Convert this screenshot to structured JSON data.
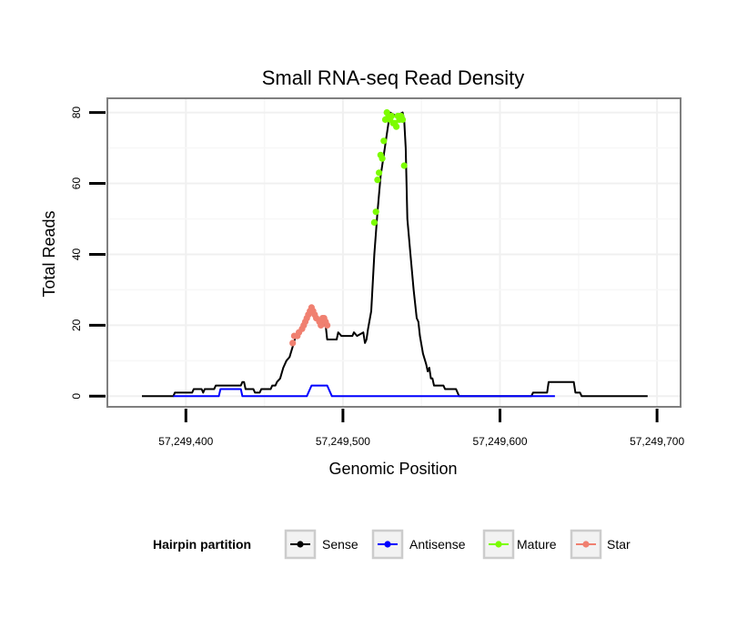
{
  "chart_data": {
    "type": "line",
    "title": "Small RNA-seq Read Density",
    "xlabel": "Genomic Position",
    "ylabel": "Total Reads",
    "xlim": [
      57249350,
      57249715
    ],
    "ylim": [
      -3,
      84
    ],
    "x_ticks": [
      57249400,
      57249500,
      57249600,
      57249700
    ],
    "x_tick_labels": [
      "57,249,400",
      "57,249,500",
      "57,249,600",
      "57,249,700"
    ],
    "y_ticks": [
      0,
      20,
      40,
      60,
      80
    ],
    "y_tick_labels": [
      "0",
      "20",
      "40",
      "60",
      "80"
    ],
    "grid": true,
    "legend": {
      "title": "Hairpin partition",
      "position": "bottom",
      "entries": [
        {
          "label": "Sense",
          "color": "#000000"
        },
        {
          "label": "Antisense",
          "color": "#0000ff"
        },
        {
          "label": "Mature",
          "color": "#7cfc00"
        },
        {
          "label": "Star",
          "color": "#f08070"
        }
      ]
    },
    "series": [
      {
        "name": "Sense",
        "color": "#000000",
        "style": "line",
        "points": [
          [
            57249372,
            0
          ],
          [
            57249392,
            0
          ],
          [
            57249393,
            1
          ],
          [
            57249404,
            1
          ],
          [
            57249405,
            2
          ],
          [
            57249410,
            2
          ],
          [
            57249411,
            1
          ],
          [
            57249412,
            2
          ],
          [
            57249418,
            2
          ],
          [
            57249419,
            3
          ],
          [
            57249435,
            3
          ],
          [
            57249436,
            4
          ],
          [
            57249437,
            4
          ],
          [
            57249438,
            2
          ],
          [
            57249443,
            2
          ],
          [
            57249444,
            1
          ],
          [
            57249447,
            1
          ],
          [
            57249448,
            2
          ],
          [
            57249454,
            2
          ],
          [
            57249455,
            3
          ],
          [
            57249457,
            3
          ],
          [
            57249458,
            4
          ],
          [
            57249460,
            5
          ],
          [
            57249462,
            8
          ],
          [
            57249464,
            10
          ],
          [
            57249466,
            11
          ],
          [
            57249468,
            14
          ],
          [
            57249470,
            17
          ],
          [
            57249474,
            19
          ],
          [
            57249478,
            22
          ],
          [
            57249480,
            24
          ],
          [
            57249482,
            23
          ],
          [
            57249484,
            21
          ],
          [
            57249486,
            22
          ],
          [
            57249488,
            20
          ],
          [
            57249489,
            20
          ],
          [
            57249490,
            16
          ],
          [
            57249496,
            16
          ],
          [
            57249497,
            18
          ],
          [
            57249499,
            17
          ],
          [
            57249506,
            17
          ],
          [
            57249507,
            18
          ],
          [
            57249509,
            17
          ],
          [
            57249513,
            18
          ],
          [
            57249514,
            15
          ],
          [
            57249515,
            16
          ],
          [
            57249516,
            19
          ],
          [
            57249518,
            24
          ],
          [
            57249520,
            40
          ],
          [
            57249522,
            52
          ],
          [
            57249524,
            62
          ],
          [
            57249526,
            68
          ],
          [
            57249528,
            74
          ],
          [
            57249530,
            80
          ],
          [
            57249534,
            79
          ],
          [
            57249538,
            80
          ],
          [
            57249539,
            78
          ],
          [
            57249540,
            70
          ],
          [
            57249541,
            50
          ],
          [
            57249543,
            40
          ],
          [
            57249545,
            30
          ],
          [
            57249547,
            22
          ],
          [
            57249548,
            21
          ],
          [
            57249549,
            17
          ],
          [
            57249551,
            12
          ],
          [
            57249553,
            9
          ],
          [
            57249554,
            7
          ],
          [
            57249555,
            8
          ],
          [
            57249556,
            5
          ],
          [
            57249557,
            5
          ],
          [
            57249558,
            3
          ],
          [
            57249564,
            3
          ],
          [
            57249565,
            2
          ],
          [
            57249572,
            2
          ],
          [
            57249574,
            0
          ],
          [
            57249620,
            0
          ],
          [
            57249621,
            1
          ],
          [
            57249630,
            1
          ],
          [
            57249631,
            4
          ],
          [
            57249647,
            4
          ],
          [
            57249648,
            1
          ],
          [
            57249651,
            1
          ],
          [
            57249652,
            0
          ],
          [
            57249694,
            0
          ]
        ]
      },
      {
        "name": "Antisense",
        "color": "#0000ff",
        "style": "line",
        "points": [
          [
            57249392,
            0
          ],
          [
            57249421,
            0
          ],
          [
            57249422,
            2
          ],
          [
            57249435,
            2
          ],
          [
            57249436,
            0
          ],
          [
            57249477,
            0
          ],
          [
            57249480,
            3
          ],
          [
            57249490,
            3
          ],
          [
            57249493,
            0
          ],
          [
            57249635,
            0
          ]
        ]
      },
      {
        "name": "Mature",
        "color": "#7cfc00",
        "style": "points",
        "points": [
          [
            57249520,
            49
          ],
          [
            57249521,
            52
          ],
          [
            57249522,
            61
          ],
          [
            57249523,
            63
          ],
          [
            57249524,
            68
          ],
          [
            57249525,
            67
          ],
          [
            57249526,
            72
          ],
          [
            57249527,
            78
          ],
          [
            57249528,
            80
          ],
          [
            57249529,
            79
          ],
          [
            57249530,
            78
          ],
          [
            57249531,
            79
          ],
          [
            57249532,
            77
          ],
          [
            57249533,
            77
          ],
          [
            57249534,
            76
          ],
          [
            57249535,
            79
          ],
          [
            57249536,
            78
          ],
          [
            57249537,
            79
          ],
          [
            57249538,
            78
          ],
          [
            57249539,
            65
          ]
        ]
      },
      {
        "name": "Star",
        "color": "#f08070",
        "style": "points",
        "points": [
          [
            57249468,
            15
          ],
          [
            57249469,
            17
          ],
          [
            57249471,
            17
          ],
          [
            57249472,
            18
          ],
          [
            57249474,
            19
          ],
          [
            57249475,
            20
          ],
          [
            57249476,
            21
          ],
          [
            57249477,
            22
          ],
          [
            57249478,
            23
          ],
          [
            57249479,
            24
          ],
          [
            57249480,
            25
          ],
          [
            57249481,
            24
          ],
          [
            57249482,
            23
          ],
          [
            57249483,
            22
          ],
          [
            57249485,
            21
          ],
          [
            57249486,
            20
          ],
          [
            57249487,
            22
          ],
          [
            57249488,
            22
          ],
          [
            57249489,
            21
          ],
          [
            57249490,
            20
          ]
        ]
      }
    ]
  }
}
